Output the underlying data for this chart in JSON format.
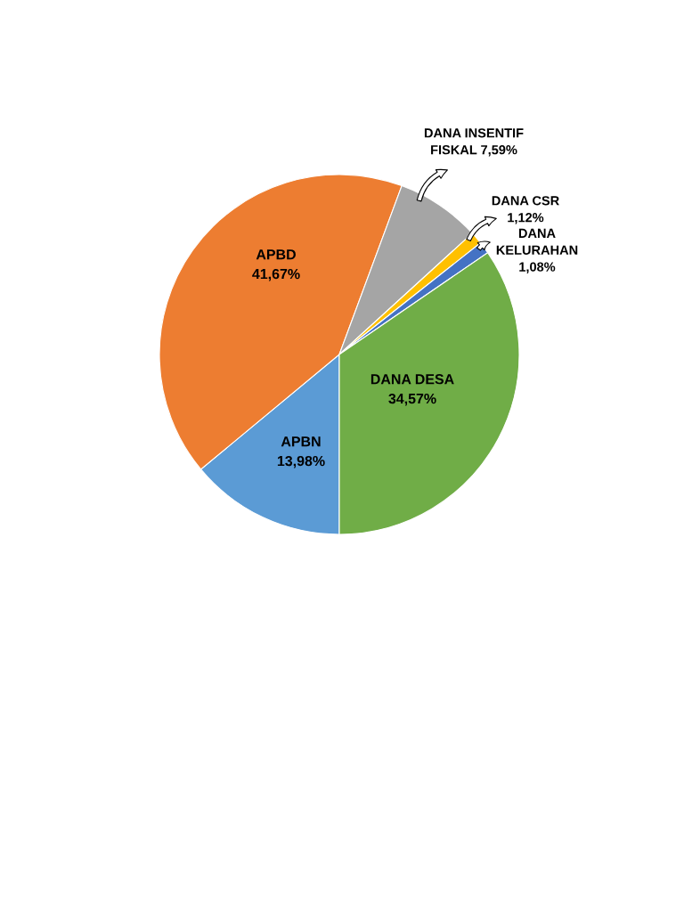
{
  "chart_data": {
    "type": "pie",
    "categories": [
      "APBN",
      "APBD",
      "DANA INSENTIF FISKAL",
      "DANA CSR",
      "DANA KELURAHAN",
      "DANA DESA"
    ],
    "values": [
      13.98,
      41.67,
      7.59,
      1.12,
      1.08,
      34.57
    ],
    "value_labels": [
      "13,98%",
      "41,67%",
      "7,59%",
      "1,12%",
      "1,08%",
      "34,57%"
    ],
    "colors": [
      "#5b9bd5",
      "#ed7d31",
      "#a5a5a5",
      "#ffc000",
      "#4472c4",
      "#70ad47"
    ]
  }
}
